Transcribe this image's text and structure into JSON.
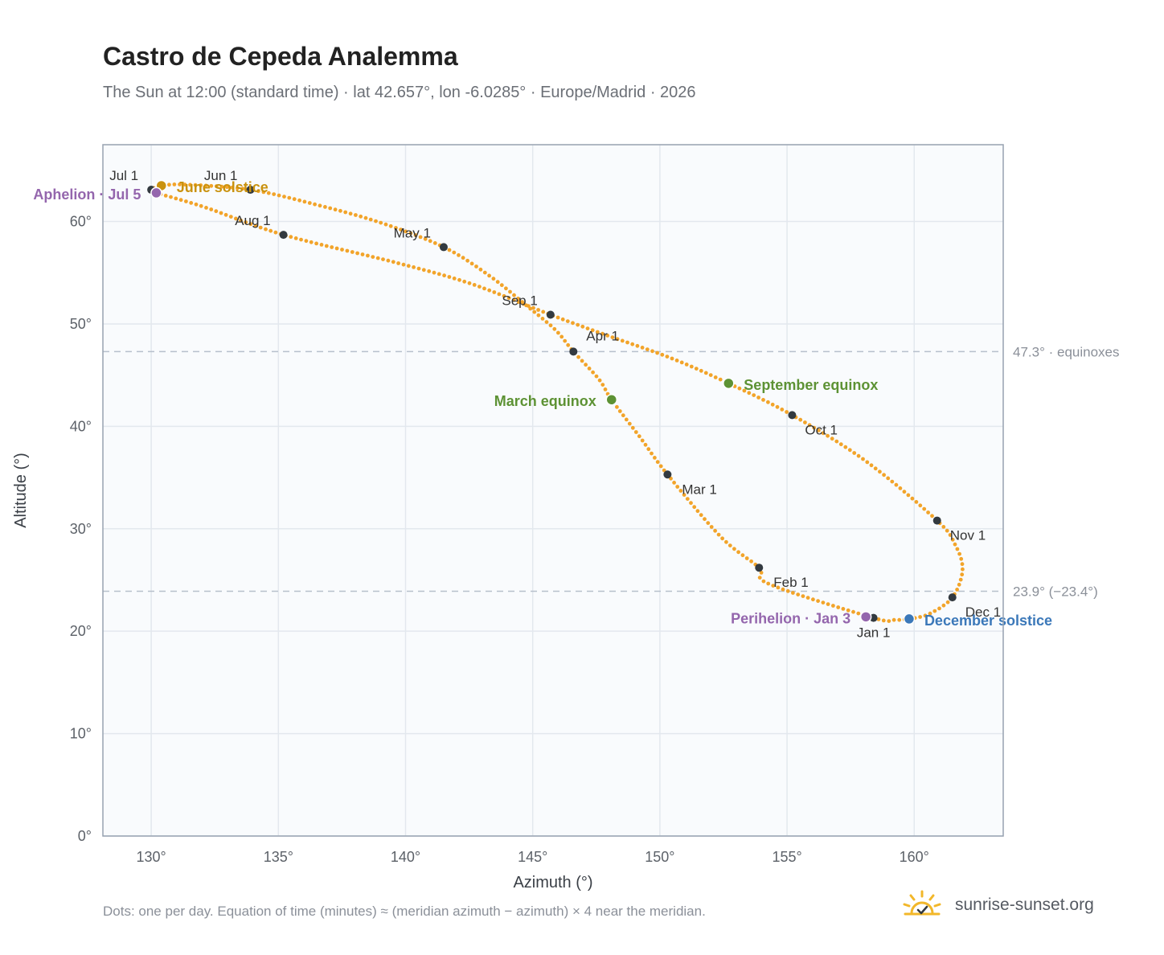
{
  "page": {
    "title": "Castro de Cepeda Analemma",
    "subtitle": "The Sun at 12:00 (standard time) · lat 42.657°, lon -6.0285° · Europe/Madrid · 2026",
    "footnote": "Dots: one per day. Equation of time (minutes) ≈ (meridian azimuth − azimuth) × 4 near the meridian.",
    "brand": "sunrise-sunset.org",
    "brand_icon": "sun-logo-icon"
  },
  "chart_data": {
    "type": "scatter",
    "title": "Castro de Cepeda Analemma",
    "xlabel": "Azimuth (°)",
    "ylabel": "Altitude (°)",
    "xlim": [
      128.1,
      163.5
    ],
    "ylim": [
      0,
      67.5
    ],
    "xticks": [
      130,
      135,
      140,
      145,
      150,
      155,
      160
    ],
    "xtick_labels": [
      "130°",
      "135°",
      "140°",
      "145°",
      "150°",
      "155°",
      "160°"
    ],
    "yticks": [
      0,
      10,
      20,
      30,
      40,
      50,
      60
    ],
    "ytick_labels": [
      "0°",
      "10°",
      "20°",
      "30°",
      "40°",
      "50°",
      "60°"
    ],
    "grid": true,
    "colors": {
      "path": "#f2a42a",
      "month": "#333a40",
      "solstice_june": "#c9920f",
      "solstice_december": "#3b78b9",
      "equinox": "#5d9234",
      "apsis": "#9466ad",
      "reference": "#b7c0cc",
      "plot_bg": "#f9fbfd",
      "frame": "#97a2b0"
    },
    "reference_lines": [
      {
        "y": 47.3,
        "label": "47.3° · equinoxes"
      },
      {
        "y": 23.9,
        "label": "23.9° (−23.4°)"
      }
    ],
    "path": [
      {
        "x": 158.4,
        "y": 21.3
      },
      {
        "x": 154.3,
        "y": 24.6
      },
      {
        "x": 153.9,
        "y": 26.2
      },
      {
        "x": 152.4,
        "y": 29.2
      },
      {
        "x": 150.3,
        "y": 35.3
      },
      {
        "x": 149.2,
        "y": 39.0
      },
      {
        "x": 148.1,
        "y": 42.6
      },
      {
        "x": 147.6,
        "y": 44.6
      },
      {
        "x": 146.6,
        "y": 47.3
      },
      {
        "x": 145.9,
        "y": 49.4
      },
      {
        "x": 144.8,
        "y": 51.7
      },
      {
        "x": 143.3,
        "y": 54.7
      },
      {
        "x": 141.5,
        "y": 57.5
      },
      {
        "x": 139.0,
        "y": 59.9
      },
      {
        "x": 136.4,
        "y": 61.7
      },
      {
        "x": 133.9,
        "y": 63.1
      },
      {
        "x": 131.4,
        "y": 63.6
      },
      {
        "x": 130.4,
        "y": 63.5
      },
      {
        "x": 130.0,
        "y": 63.1
      },
      {
        "x": 130.2,
        "y": 62.8
      },
      {
        "x": 132.1,
        "y": 61.4
      },
      {
        "x": 135.2,
        "y": 58.7
      },
      {
        "x": 139.6,
        "y": 56.0
      },
      {
        "x": 142.6,
        "y": 53.9
      },
      {
        "x": 145.7,
        "y": 50.9
      },
      {
        "x": 147.9,
        "y": 48.9
      },
      {
        "x": 150.4,
        "y": 46.7
      },
      {
        "x": 152.7,
        "y": 44.2
      },
      {
        "x": 155.2,
        "y": 41.1
      },
      {
        "x": 158.1,
        "y": 36.6
      },
      {
        "x": 160.9,
        "y": 30.8
      },
      {
        "x": 161.6,
        "y": 28.5
      },
      {
        "x": 161.9,
        "y": 26.0
      },
      {
        "x": 161.5,
        "y": 23.3
      },
      {
        "x": 160.6,
        "y": 21.7
      },
      {
        "x": 159.8,
        "y": 21.2
      },
      {
        "x": 159.2,
        "y": 21.1
      },
      {
        "x": 158.4,
        "y": 21.3
      }
    ],
    "months": [
      {
        "label": "Jan 1",
        "x": 158.4,
        "y": 21.3,
        "pos": "below"
      },
      {
        "label": "Feb 1",
        "x": 153.9,
        "y": 26.2,
        "pos": "right"
      },
      {
        "label": "Mar 1",
        "x": 150.3,
        "y": 35.3,
        "pos": "right"
      },
      {
        "label": "Apr 1",
        "x": 146.6,
        "y": 47.3,
        "pos": "above-right"
      },
      {
        "label": "May 1",
        "x": 141.5,
        "y": 57.5,
        "pos": "above-left"
      },
      {
        "label": "Jun 1",
        "x": 133.9,
        "y": 63.1,
        "pos": "above-left"
      },
      {
        "label": "Jul 1",
        "x": 130.0,
        "y": 63.1,
        "pos": "above-left"
      },
      {
        "label": "Aug 1",
        "x": 135.2,
        "y": 58.7,
        "pos": "above-left"
      },
      {
        "label": "Sep 1",
        "x": 145.7,
        "y": 50.9,
        "pos": "above-left"
      },
      {
        "label": "Oct 1",
        "x": 155.2,
        "y": 41.1,
        "pos": "below-right"
      },
      {
        "label": "Nov 1",
        "x": 160.9,
        "y": 30.8,
        "pos": "below-right"
      },
      {
        "label": "Dec 1",
        "x": 161.5,
        "y": 23.3,
        "pos": "below-right"
      }
    ],
    "events": [
      {
        "label": "June solstice",
        "x": 130.4,
        "y": 63.5,
        "kind": "solstice_june",
        "side": "right"
      },
      {
        "label": "Aphelion · Jul 5",
        "x": 130.2,
        "y": 62.8,
        "kind": "apsis",
        "side": "left"
      },
      {
        "label": "March equinox",
        "x": 148.1,
        "y": 42.6,
        "kind": "equinox",
        "side": "left"
      },
      {
        "label": "September equinox",
        "x": 152.7,
        "y": 44.2,
        "kind": "equinox",
        "side": "right"
      },
      {
        "label": "Perihelion · Jan 3",
        "x": 158.1,
        "y": 21.4,
        "kind": "apsis",
        "side": "left"
      },
      {
        "label": "December solstice",
        "x": 159.8,
        "y": 21.2,
        "kind": "solstice_december",
        "side": "right"
      }
    ]
  }
}
